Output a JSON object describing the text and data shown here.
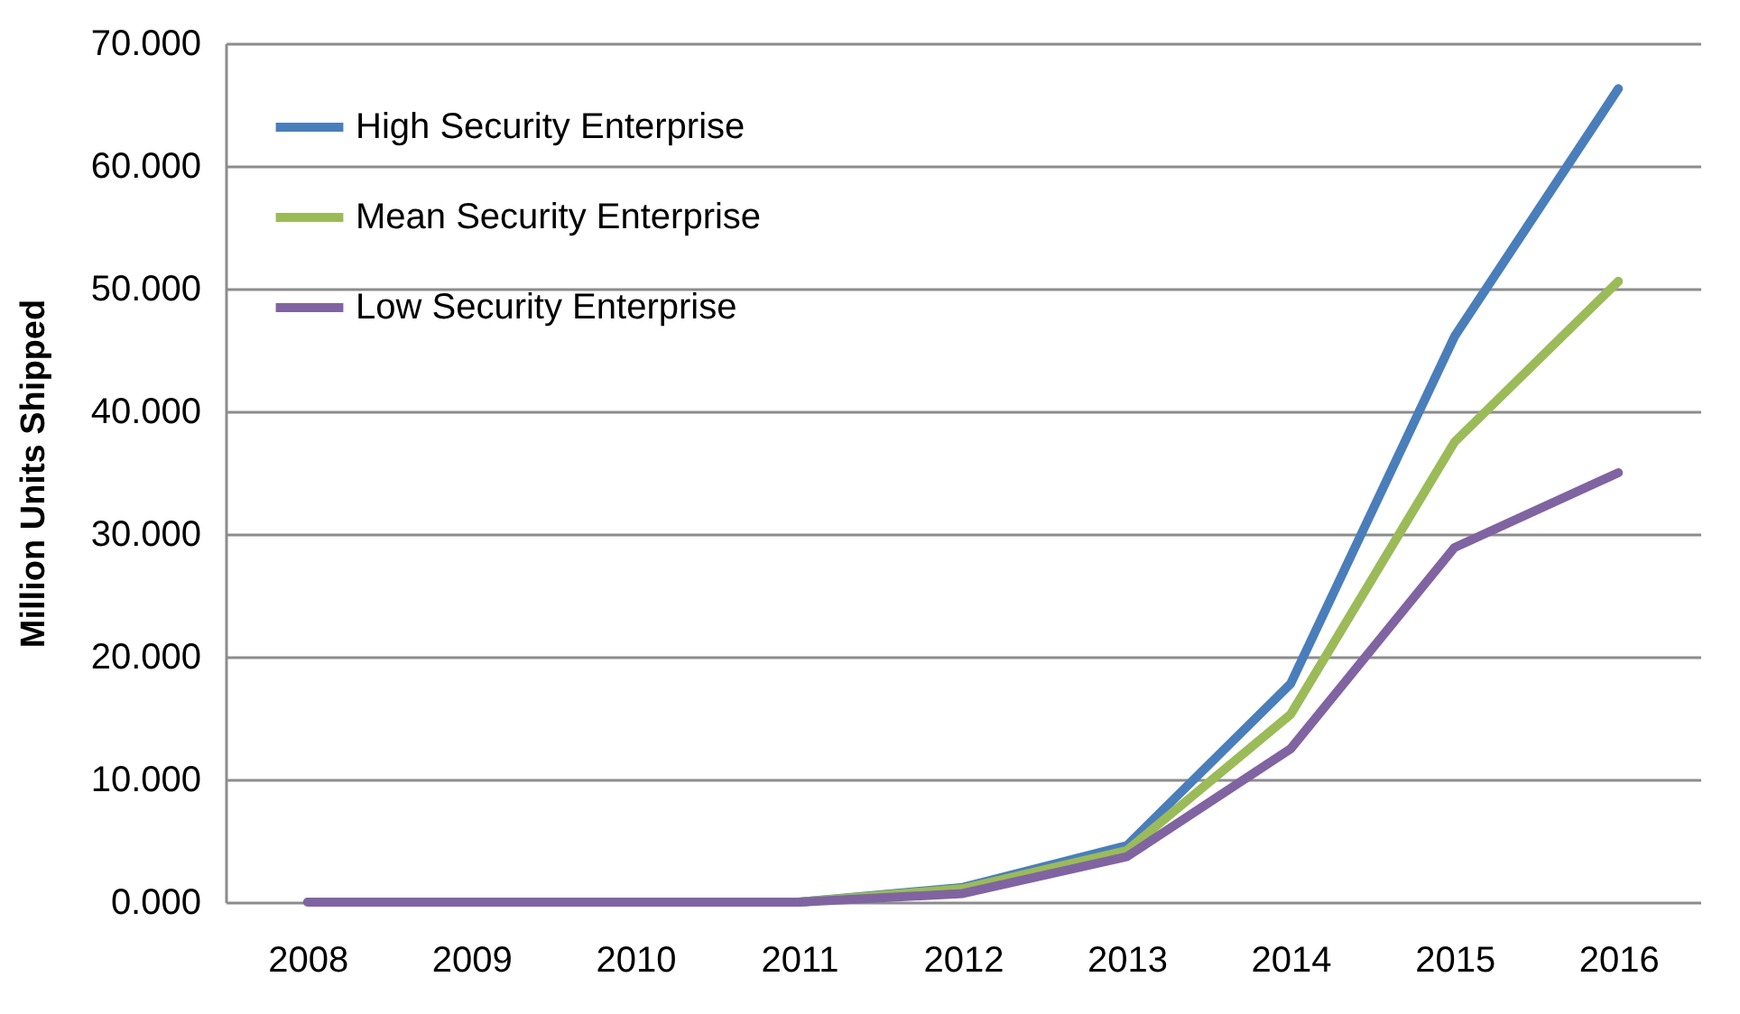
{
  "chart_data": {
    "type": "line",
    "ylabel": "Million  Units Shipped",
    "categories": [
      "2008",
      "2009",
      "2010",
      "2011",
      "2012",
      "2013",
      "2014",
      "2015",
      "2016"
    ],
    "series": [
      {
        "name": "High Security Enterprise",
        "color": "#4a7ebb",
        "values": [
          null,
          null,
          0,
          0,
          1.2,
          4.6,
          17.8,
          46.1,
          66.3
        ]
      },
      {
        "name": "Mean Security Enterprise",
        "color": "#9bbb59",
        "values": [
          null,
          null,
          0,
          0,
          1.1,
          4.2,
          15.3,
          37.5,
          50.6
        ]
      },
      {
        "name": "Low Security Enterprise",
        "color": "#8064a2",
        "values": [
          0,
          0,
          0,
          0,
          0.7,
          3.7,
          12.5,
          28.9,
          35.0
        ]
      }
    ],
    "ylim": [
      0,
      70
    ],
    "yticks": [
      {
        "value": 0,
        "label": "0.000"
      },
      {
        "value": 10,
        "label": "10.000"
      },
      {
        "value": 20,
        "label": "20.000"
      },
      {
        "value": 30,
        "label": "30.000"
      },
      {
        "value": 40,
        "label": "40.000"
      },
      {
        "value": 50,
        "label": "50.000"
      },
      {
        "value": 60,
        "label": "60.000"
      },
      {
        "value": 70,
        "label": "70.000"
      }
    ],
    "grid": "y",
    "legend": "top left",
    "marker": "none",
    "line_style": "solid"
  }
}
